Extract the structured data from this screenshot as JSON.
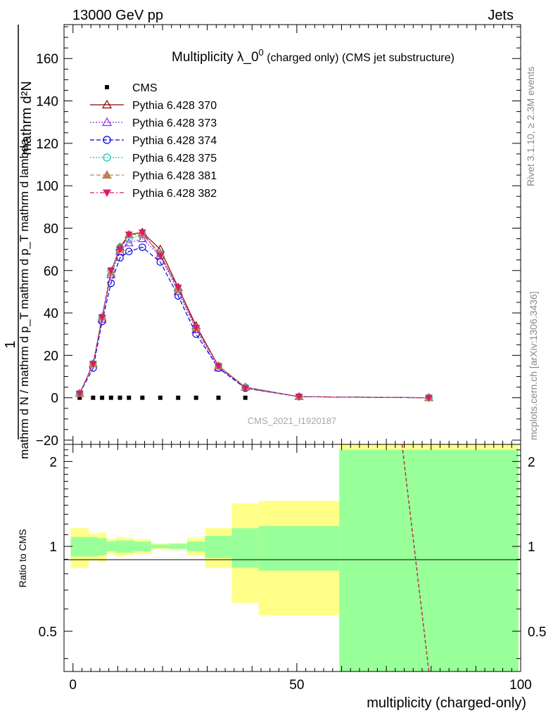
{
  "header": {
    "left": "13000 GeV pp",
    "right": "Jets"
  },
  "side_labels": {
    "rivet": "Rivet 3.1.10, ≥ 2.3M events",
    "mcplots": "mcplots.cern.ch [arXiv:1306.3436]"
  },
  "watermark": "CMS_2021_I1920187",
  "chart_data": [
    {
      "type": "line",
      "title_main": "Multiplicity λ_0",
      "title_sup": "0",
      "title_rest": " (charged only) (CMS jet substructure)",
      "ylabel_top": "1",
      "ylabel_bottom": "mathrm d N / mathrm d p_T mathrm d p_T mathrm d lambda",
      "ylabel_numerator": "mathrm d²N",
      "xlim": [
        -2,
        100
      ],
      "ylim": [
        -22,
        176
      ],
      "yticks": [
        -20,
        0,
        20,
        40,
        60,
        80,
        100,
        120,
        140,
        160
      ],
      "ytick_labels": [
        "−20",
        "0",
        "20",
        "40",
        "60",
        "80",
        "100",
        "120",
        "140",
        "160"
      ],
      "legend_position": "top-left",
      "x": [
        1.5,
        4.5,
        6.5,
        8.5,
        10.5,
        12.5,
        15.5,
        19.5,
        23.5,
        27.5,
        32.5,
        38.5,
        50.5,
        79.5
      ],
      "series": [
        {
          "name": "CMS",
          "color": "#000000",
          "marker": "square",
          "values": [
            0,
            0,
            0,
            0,
            0,
            0,
            0,
            0,
            0,
            0,
            0,
            0,
            0,
            0
          ]
        },
        {
          "name": "Pythia 6.428 370",
          "color": "#8b0000",
          "marker": "triangle-open",
          "dash": "solid",
          "values": [
            2,
            16,
            38,
            59,
            71,
            77,
            78,
            70,
            52,
            34,
            15,
            5,
            0.5,
            0
          ]
        },
        {
          "name": "Pythia 6.428 373",
          "color": "#8a2be2",
          "marker": "triangle-open",
          "dash": "dotted",
          "values": [
            2,
            16,
            37,
            58,
            69,
            73,
            75,
            67,
            50,
            32,
            14,
            5,
            0.5,
            0
          ]
        },
        {
          "name": "Pythia 6.428 374",
          "color": "#0000dd",
          "marker": "circle-open",
          "dash": "dashed",
          "values": [
            2,
            14,
            36,
            54,
            66,
            69,
            71,
            64,
            48,
            30,
            14,
            4.5,
            0.5,
            0
          ]
        },
        {
          "name": "Pythia 6.428 375",
          "color": "#00cdb0",
          "marker": "circle-open",
          "dash": "dotted",
          "values": [
            2,
            16,
            38,
            60,
            71,
            75,
            77,
            68,
            51,
            33,
            15,
            5,
            0.5,
            0
          ]
        },
        {
          "name": "Pythia 6.428 381",
          "color": "#b8865b",
          "marker": "triangle",
          "dash": "dashed",
          "values": [
            2,
            16,
            38,
            59,
            70,
            77,
            77,
            68,
            51,
            33,
            15,
            5,
            0.5,
            0
          ]
        },
        {
          "name": "Pythia 6.428 382",
          "color": "#dc1a6b",
          "marker": "triangle-down",
          "dash": "dashdot",
          "values": [
            2,
            16,
            38,
            60,
            70,
            77,
            78,
            67,
            52,
            33,
            15,
            4.5,
            0.5,
            0
          ]
        }
      ]
    },
    {
      "type": "area",
      "ylabel": "Ratio to CMS",
      "xlabel": "multiplicity (charged-only)",
      "xlim": [
        -2,
        100
      ],
      "ylim": [
        0.36,
        2.3
      ],
      "yticks": [
        0.5,
        1,
        2
      ],
      "ytick_labels": [
        "0.5",
        "1",
        "2"
      ],
      "xticks": [
        0,
        50,
        100
      ],
      "xtick_labels": [
        "0",
        "50",
        "100"
      ],
      "band_colors": {
        "inner": "#99ff99",
        "outer": "#ffff88"
      },
      "bins": [
        {
          "lo": -0.5,
          "hi": 3.5,
          "inner": [
            0.92,
            1.08
          ],
          "outer": [
            0.84,
            1.16
          ]
        },
        {
          "lo": 3.5,
          "hi": 5.5,
          "inner": [
            0.92,
            1.08
          ],
          "outer": [
            0.89,
            1.11
          ]
        },
        {
          "lo": 5.5,
          "hi": 7.5,
          "inner": [
            0.93,
            1.07
          ],
          "outer": [
            0.88,
            1.12
          ]
        },
        {
          "lo": 7.5,
          "hi": 9.5,
          "inner": [
            0.96,
            1.04
          ],
          "outer": [
            0.94,
            1.06
          ]
        },
        {
          "lo": 9.5,
          "hi": 11.5,
          "inner": [
            0.95,
            1.05
          ],
          "outer": [
            0.92,
            1.08
          ]
        },
        {
          "lo": 11.5,
          "hi": 13.5,
          "inner": [
            0.95,
            1.05
          ],
          "outer": [
            0.93,
            1.07
          ]
        },
        {
          "lo": 13.5,
          "hi": 17.5,
          "inner": [
            0.96,
            1.04
          ],
          "outer": [
            0.94,
            1.06
          ]
        },
        {
          "lo": 17.5,
          "hi": 21.5,
          "inner": [
            0.985,
            1.015
          ],
          "outer": [
            0.975,
            1.025
          ]
        },
        {
          "lo": 21.5,
          "hi": 25.5,
          "inner": [
            0.98,
            1.02
          ],
          "outer": [
            0.97,
            1.03
          ]
        },
        {
          "lo": 25.5,
          "hi": 29.5,
          "inner": [
            0.96,
            1.04
          ],
          "outer": [
            0.93,
            1.07
          ]
        },
        {
          "lo": 29.5,
          "hi": 35.5,
          "inner": [
            0.91,
            1.09
          ],
          "outer": [
            0.84,
            1.16
          ]
        },
        {
          "lo": 35.5,
          "hi": 41.5,
          "inner": [
            0.84,
            1.16
          ],
          "outer": [
            0.63,
            1.42
          ]
        },
        {
          "lo": 41.5,
          "hi": 59.5,
          "inner": [
            0.82,
            1.18
          ],
          "outer": [
            0.57,
            1.45
          ]
        },
        {
          "lo": 59.5,
          "hi": 99.5,
          "inner": [
            0.36,
            2.2
          ],
          "outer": [
            0.36,
            2.3
          ]
        }
      ],
      "ratio_line": {
        "color": "#c0304a",
        "x": [
          73.5,
          79.5
        ],
        "y": [
          2.3,
          0.36
        ]
      }
    }
  ]
}
